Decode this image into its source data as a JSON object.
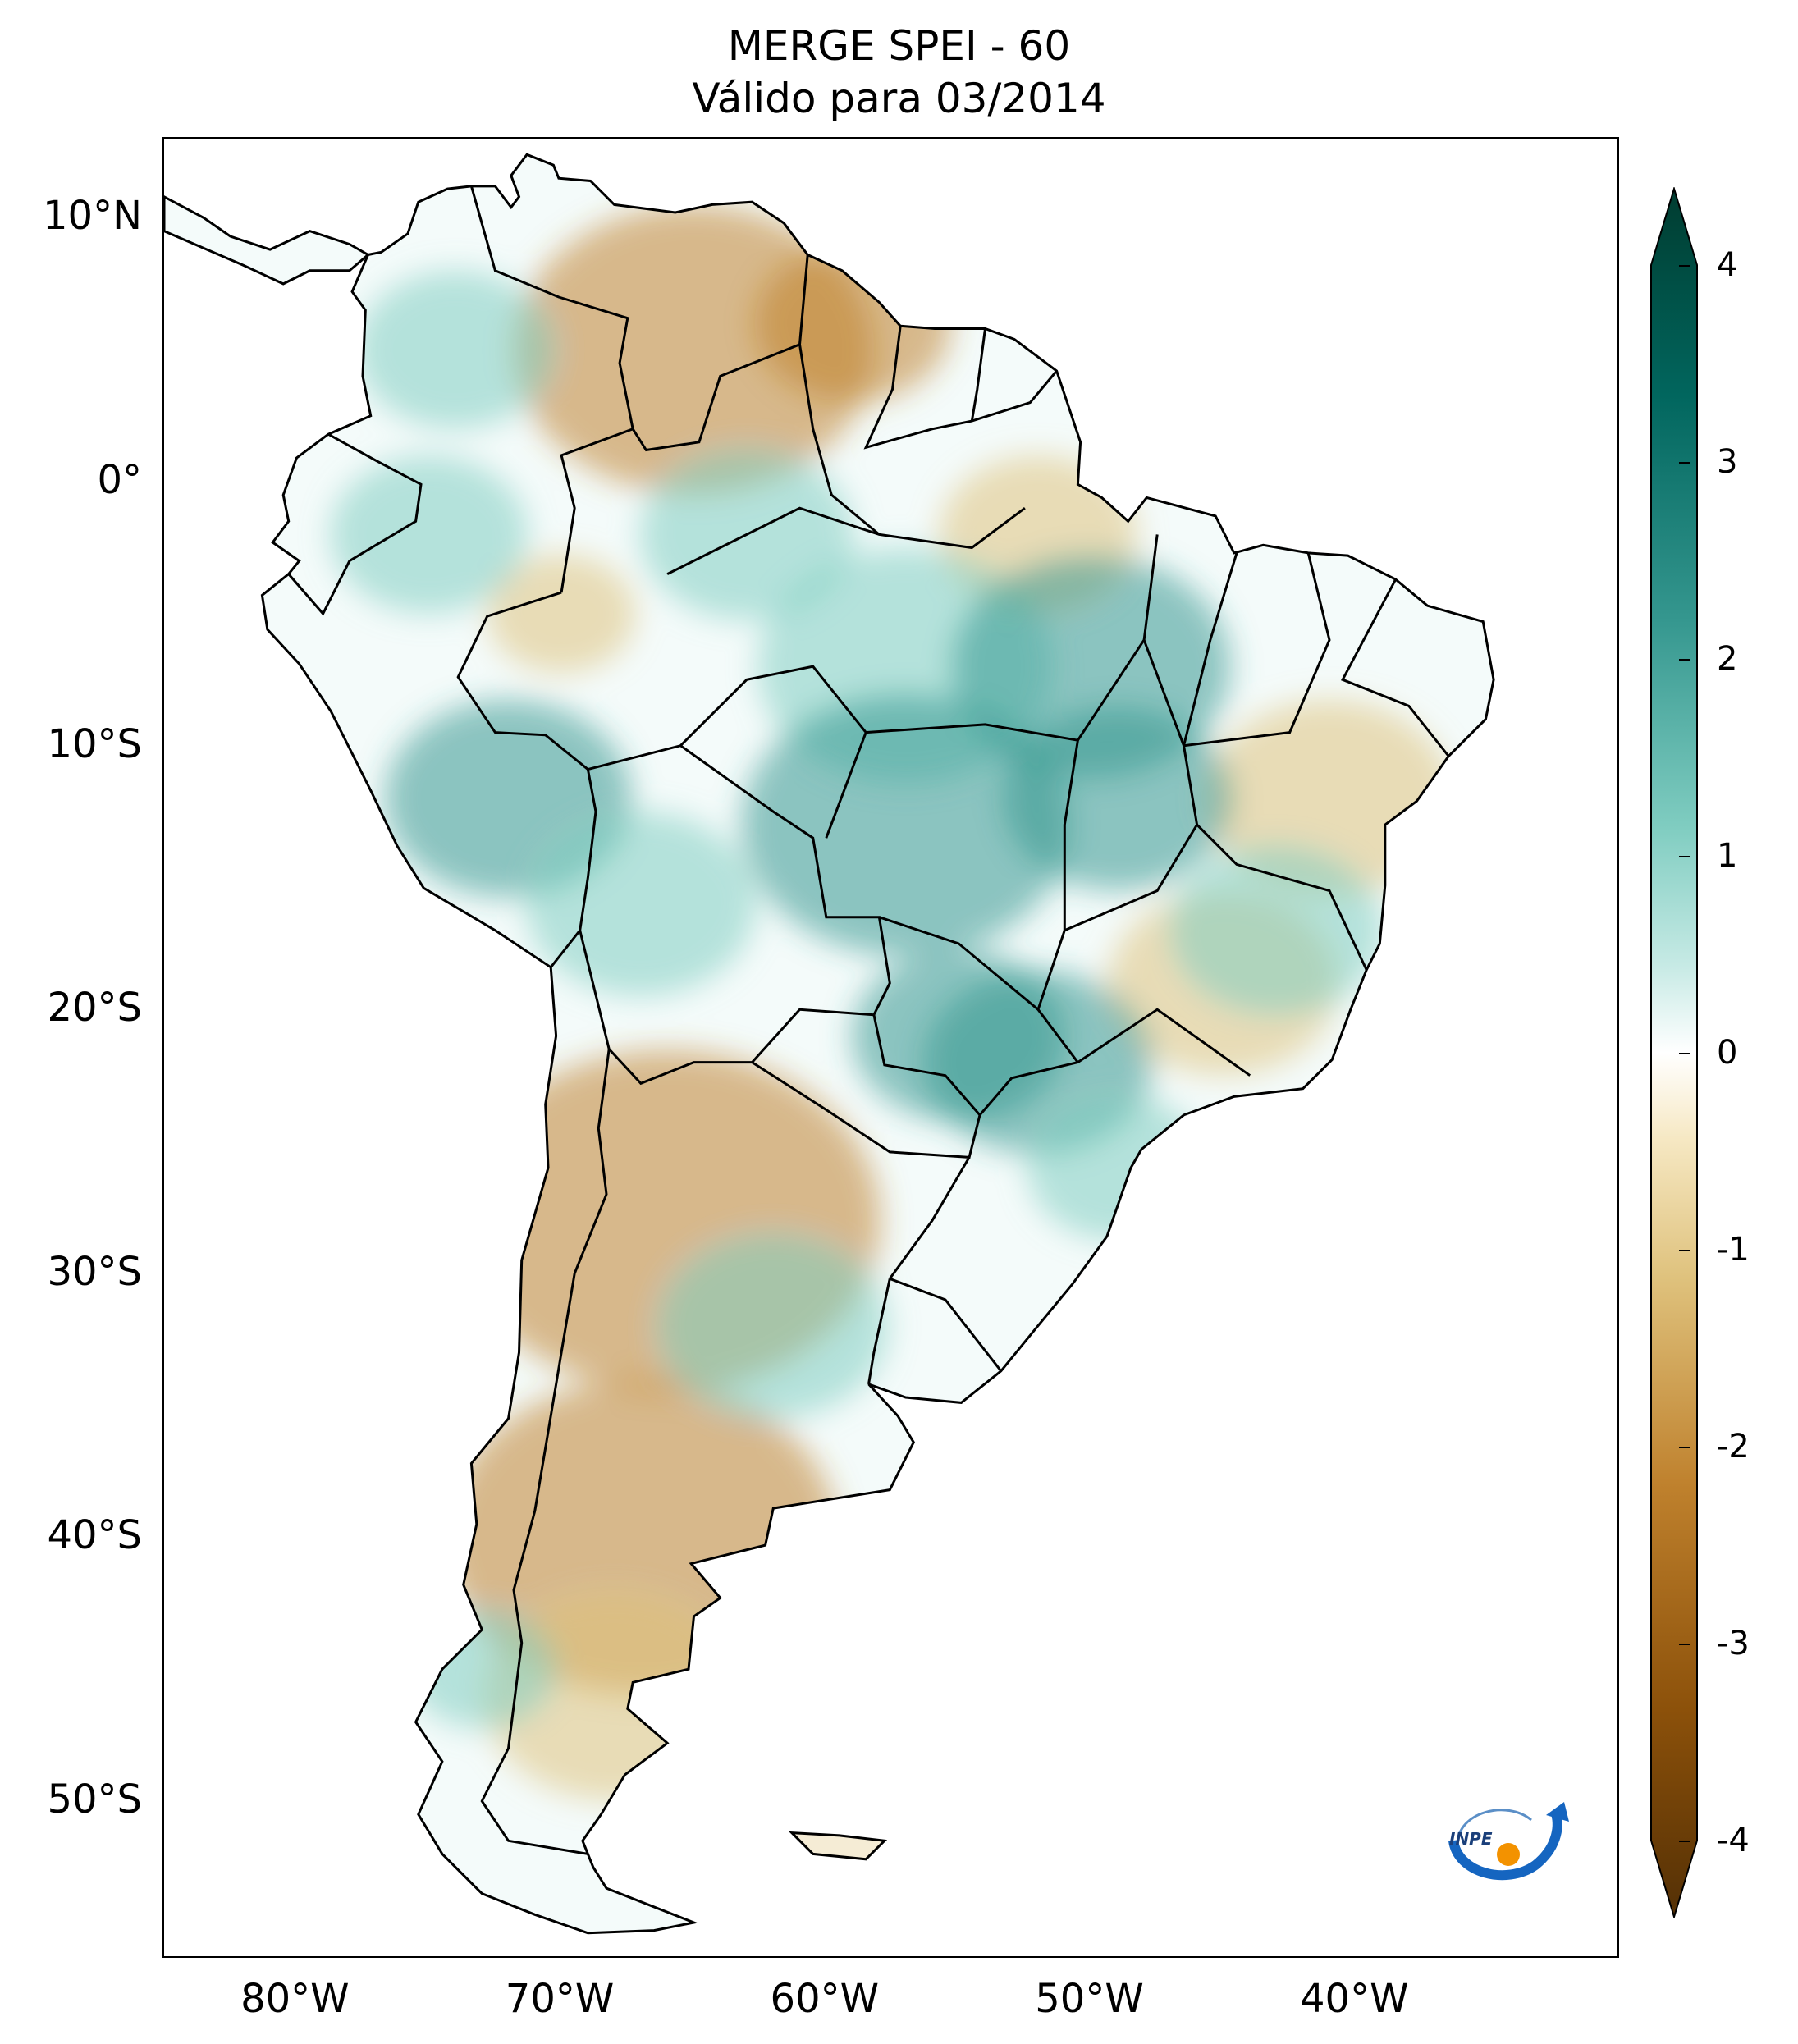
{
  "title": {
    "line1": "MERGE   SPEI - 60",
    "line2": "Válido para 03/2014"
  },
  "map": {
    "region": "South America",
    "lon_range": [
      -85,
      -30
    ],
    "lat_range": [
      -56,
      13
    ],
    "lat_ticks": [
      "10°N",
      "0°",
      "10°S",
      "20°S",
      "30°S",
      "40°S",
      "50°S"
    ],
    "lon_ticks": [
      "80°W",
      "70°W",
      "60°W",
      "50°W",
      "40°W"
    ]
  },
  "colorbar": {
    "min": -4,
    "max": 4,
    "extend": "both",
    "labels": [
      "4",
      "3",
      "2",
      "1",
      "0",
      "-1",
      "-2",
      "-3",
      "-4"
    ],
    "colors": {
      "very_dry": "#543005",
      "dry": "#bf812d",
      "slightly_dry": "#f6e8c3",
      "neutral": "#ffffff",
      "slightly_wet": "#c7eae5",
      "wet": "#35978f",
      "very_wet": "#003c30"
    }
  },
  "logo": {
    "text": "INPE"
  }
}
